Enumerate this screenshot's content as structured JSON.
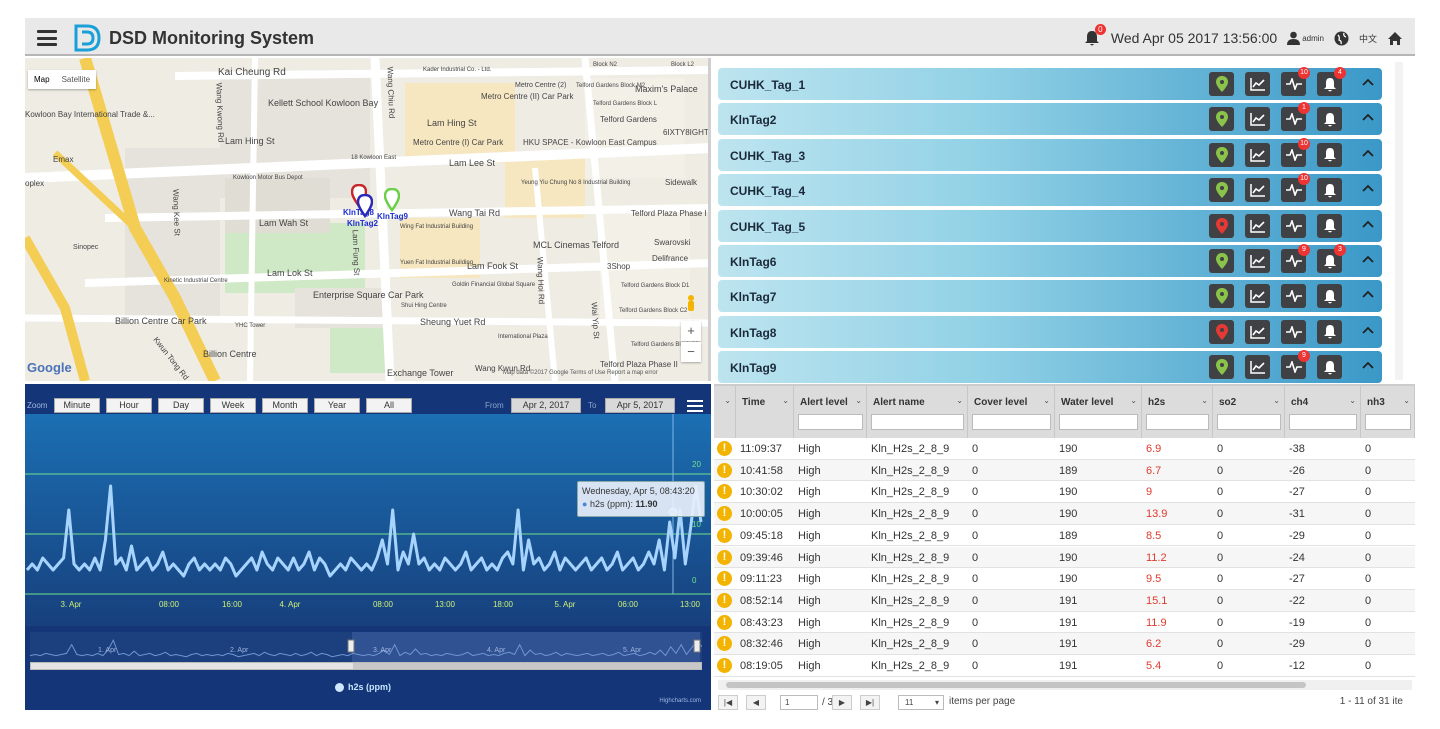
{
  "header": {
    "title": "DSD Monitoring System",
    "notif_count": "0",
    "datetime": "Wed Apr 05 2017 13:56:00",
    "user": "admin",
    "lang": "中文"
  },
  "map": {
    "tabs": [
      "Map",
      "Satellite"
    ],
    "labels": [
      {
        "t": "Kai Cheung Rd"
      },
      {
        "t": "Kader Industrial Co. - Ltd."
      },
      {
        "t": "Block N2"
      },
      {
        "t": "Block L2"
      },
      {
        "t": "Metro Centre (2)"
      },
      {
        "t": "Telford Gardens Block M2"
      },
      {
        "t": "Maxim's Palace"
      },
      {
        "t": "Kellett School Kowloon Bay"
      },
      {
        "t": "Metro Centre (II) Car Park"
      },
      {
        "t": "Telford Gardens Block L"
      },
      {
        "t": "Kowloon Bay International Trade &..."
      },
      {
        "t": "Lam Hing St"
      },
      {
        "t": "Telford Gardens"
      },
      {
        "t": "6IXTY8IGHT"
      },
      {
        "t": "Lam Hing St"
      },
      {
        "t": "Metro Centre (I) Car Park"
      },
      {
        "t": "HKU SPACE - Kowloon East Campus"
      },
      {
        "t": "Emax"
      },
      {
        "t": "18 Kowloon East"
      },
      {
        "t": "Lam Lee St"
      },
      {
        "t": "Kowloon Motor Bus Depot"
      },
      {
        "t": "Sidewalk"
      },
      {
        "t": "Yeung Yiu Chung No 8 Industrial Building"
      },
      {
        "t": "oplex"
      },
      {
        "t": "KlnTag8"
      },
      {
        "t": "KlnTag9"
      },
      {
        "t": "KlnTag2"
      },
      {
        "t": "Wang Tai Rd"
      },
      {
        "t": "Telford Plaza Phase I (shopping..."
      },
      {
        "t": "Lam Wah St"
      },
      {
        "t": "Wing Fat Industrial Building"
      },
      {
        "t": "Sinopec"
      },
      {
        "t": "MCL Cinemas Telford"
      },
      {
        "t": "Swarovski"
      },
      {
        "t": "Delifrance"
      },
      {
        "t": "Yuen Fat Industrial Building"
      },
      {
        "t": "Lam Fook St"
      },
      {
        "t": "3Shop"
      },
      {
        "t": "Kinetic Industrial Centre"
      },
      {
        "t": "Lam Lok St"
      },
      {
        "t": "Goldin Financial Global Square"
      },
      {
        "t": "Telford Gardens Block D1"
      },
      {
        "t": "Enterprise Square Car Park"
      },
      {
        "t": "Shui Hing Centre"
      },
      {
        "t": "Telford Gardens Block C2"
      },
      {
        "t": "Billion Centre Car Park"
      },
      {
        "t": "Sheung Yuet Rd"
      },
      {
        "t": "YHC Tower"
      },
      {
        "t": "International Plaza"
      },
      {
        "t": "Telford Gardens Block A1"
      },
      {
        "t": "Billion Centre"
      },
      {
        "t": "Exchange Tower"
      },
      {
        "t": "Wang Kwun Rd"
      },
      {
        "t": "Telford Plaza Phase II"
      },
      {
        "t": "Kwun Tong Rd"
      },
      {
        "t": "Wang Chiu Rd"
      },
      {
        "t": "Wang Kwong Rd"
      },
      {
        "t": "Wang Kee St"
      },
      {
        "t": "Wai Yip St"
      },
      {
        "t": "Wang Hoi Rd"
      },
      {
        "t": "Lam Fung St"
      }
    ],
    "google": "Google",
    "copyright": "Map data ©2017 Google   Terms of Use   Report a map error"
  },
  "chart": {
    "zoom_label": "Zoom",
    "zoom_buttons": [
      "Minute",
      "Hour",
      "Day",
      "Week",
      "Month",
      "Year",
      "All"
    ],
    "from_label": "From",
    "from_value": "Apr 2, 2017",
    "to_label": "To",
    "to_value": "Apr 5, 2017",
    "tooltip_date": "Wednesday, Apr 5, 08:43:20",
    "tooltip_series": "h2s (ppm):",
    "tooltip_value": "11.90",
    "legend": "h2s (ppm)",
    "credits": "Highcharts.com",
    "navigator_ticks": [
      "1. Apr",
      "2. Apr",
      "3. Apr",
      "4. Apr",
      "5. Apr"
    ]
  },
  "chart_data": {
    "type": "line",
    "series": [
      {
        "name": "h2s (ppm)",
        "values": [
          4,
          5,
          4,
          6,
          5,
          4,
          5,
          6,
          14,
          5,
          4,
          5,
          4,
          6,
          4,
          9,
          18,
          5,
          6,
          4,
          8,
          4,
          5,
          6,
          4,
          5,
          7,
          4,
          5,
          4,
          3,
          5,
          6,
          4,
          5,
          4,
          5,
          4,
          6,
          5,
          3,
          4,
          5,
          6,
          4,
          7,
          5,
          4,
          6,
          5,
          4,
          6,
          4,
          5,
          7,
          4,
          6,
          5,
          3,
          4,
          5,
          4,
          6,
          5,
          4,
          5,
          4,
          6,
          9,
          5,
          14,
          4,
          7,
          5,
          10,
          5,
          6,
          4,
          5,
          4,
          6,
          5,
          4,
          5,
          7,
          4,
          5,
          6,
          4,
          5,
          4,
          6,
          7,
          5,
          14,
          4,
          9,
          5,
          6,
          4,
          5,
          7,
          4,
          6,
          5,
          4,
          5,
          6,
          4,
          5,
          6,
          4,
          5,
          7,
          4,
          5,
          6,
          4,
          5,
          7,
          5,
          9,
          4,
          12,
          6,
          14,
          5,
          11,
          18,
          12
        ]
      }
    ],
    "x_ticks": [
      "3. Apr",
      "08:00",
      "16:00",
      "4. Apr",
      "08:00",
      "16:00",
      "5. Apr",
      "08:00",
      "16:00",
      "5. Apr",
      "06:00",
      "13:00"
    ],
    "y_ticks": [
      "0",
      "10",
      "20"
    ],
    "ylim": [
      0,
      30
    ],
    "grid": true
  },
  "tags": [
    {
      "name": "CUHK_Tag_1",
      "marker": "#8bc34a",
      "badges": {
        "health": "10",
        "alert": "4"
      }
    },
    {
      "name": "KlnTag2",
      "marker": "#8bc34a",
      "badges": {
        "health": "1",
        "alert": ""
      }
    },
    {
      "name": "CUHK_Tag_3",
      "marker": "#8bc34a",
      "badges": {
        "health": "10",
        "alert": ""
      }
    },
    {
      "name": "CUHK_Tag_4",
      "marker": "#8bc34a",
      "badges": {
        "health": "10",
        "alert": ""
      }
    },
    {
      "name": "CUHK_Tag_5",
      "marker": "#e53935",
      "badges": {
        "health": "",
        "alert": ""
      }
    },
    {
      "name": "KlnTag6",
      "marker": "#8bc34a",
      "badges": {
        "health": "9",
        "alert": "3"
      }
    },
    {
      "name": "KlnTag7",
      "marker": "#8bc34a",
      "badges": {
        "health": "",
        "alert": ""
      }
    },
    {
      "name": "KlnTag8",
      "marker": "#e53935",
      "badges": {
        "health": "",
        "alert": ""
      }
    },
    {
      "name": "KlnTag9",
      "marker": "#8bc34a",
      "badges": {
        "health": "9",
        "alert": ""
      }
    }
  ],
  "grid": {
    "columns": [
      "Time",
      "Alert level",
      "Alert name",
      "Cover level",
      "Water level",
      "h2s",
      "so2",
      "ch4",
      "nh3"
    ],
    "rows": [
      [
        "11:09:37",
        "High",
        "Kln_H2s_2_8_9",
        "0",
        "190",
        "6.9",
        "0",
        "-38",
        "0"
      ],
      [
        "10:41:58",
        "High",
        "Kln_H2s_2_8_9",
        "0",
        "189",
        "6.7",
        "0",
        "-26",
        "0"
      ],
      [
        "10:30:02",
        "High",
        "Kln_H2s_2_8_9",
        "0",
        "190",
        "9",
        "0",
        "-27",
        "0"
      ],
      [
        "10:00:05",
        "High",
        "Kln_H2s_2_8_9",
        "0",
        "190",
        "13.9",
        "0",
        "-31",
        "0"
      ],
      [
        "09:45:18",
        "High",
        "Kln_H2s_2_8_9",
        "0",
        "189",
        "8.5",
        "0",
        "-29",
        "0"
      ],
      [
        "09:39:46",
        "High",
        "Kln_H2s_2_8_9",
        "0",
        "190",
        "11.2",
        "0",
        "-24",
        "0"
      ],
      [
        "09:11:23",
        "High",
        "Kln_H2s_2_8_9",
        "0",
        "190",
        "9.5",
        "0",
        "-27",
        "0"
      ],
      [
        "08:52:14",
        "High",
        "Kln_H2s_2_8_9",
        "0",
        "191",
        "15.1",
        "0",
        "-22",
        "0"
      ],
      [
        "08:43:23",
        "High",
        "Kln_H2s_2_8_9",
        "0",
        "191",
        "11.9",
        "0",
        "-19",
        "0"
      ],
      [
        "08:32:46",
        "High",
        "Kln_H2s_2_8_9",
        "0",
        "191",
        "6.2",
        "0",
        "-29",
        "0"
      ],
      [
        "08:19:05",
        "High",
        "Kln_H2s_2_8_9",
        "0",
        "191",
        "5.4",
        "0",
        "-12",
        "0"
      ]
    ],
    "pager": {
      "page": "1",
      "of": "/ 3",
      "per_page": "11",
      "per_page_label": "items per page",
      "summary": "1 - 11 of 31 ite"
    }
  }
}
